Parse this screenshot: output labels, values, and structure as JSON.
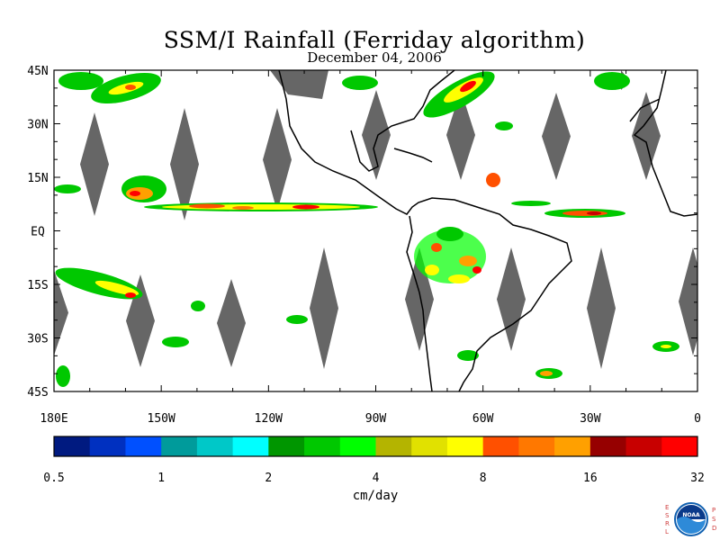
{
  "title": "SSM/I Rainfall (Ferriday algorithm)",
  "subtitle": "December 04, 2006",
  "map": {
    "lat_labels": [
      "45N",
      "30N",
      "15N",
      "EQ",
      "15S",
      "30S",
      "45S"
    ],
    "lon_labels": [
      "180E",
      "150W",
      "120W",
      "90W",
      "60W",
      "30W",
      "0"
    ],
    "lon_range": [
      -180,
      0
    ],
    "lat_range": [
      -45,
      45
    ],
    "gap_color": "#666666",
    "coast_color": "#000000"
  },
  "colorbar": {
    "unit": "cm/day",
    "tick_labels": [
      "0.5",
      "1",
      "2",
      "4",
      "8",
      "16",
      "32"
    ],
    "colors": [
      "#001a80",
      "#0030c0",
      "#0050ff",
      "#009b9b",
      "#00c8c8",
      "#00ffff",
      "#009600",
      "#00c800",
      "#00ff00",
      "#b4b400",
      "#e1e100",
      "#ffff00",
      "#ff5000",
      "#ff7800",
      "#ffa000",
      "#960000",
      "#c80000",
      "#ff0000"
    ]
  },
  "logo": {
    "left_letters": [
      "E",
      "S",
      "R",
      "L"
    ],
    "right_letters": [
      "P",
      "S",
      "D"
    ],
    "badge_text": "NOAA"
  }
}
